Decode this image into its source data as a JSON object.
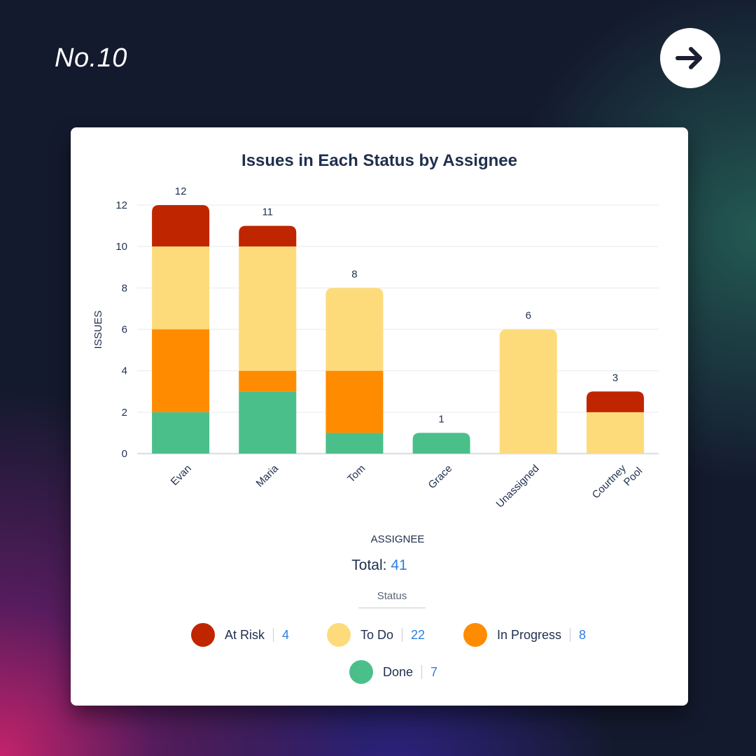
{
  "page": {
    "slide_number": "No.10",
    "next_icon": "arrow-right-icon"
  },
  "chart_data": {
    "type": "bar",
    "stacked": true,
    "title": "Issues in Each Status by Assignee",
    "xlabel": "ASSIGNEE",
    "ylabel": "ISSUES",
    "ylim": [
      0,
      12
    ],
    "yticks": [
      0,
      2,
      4,
      6,
      8,
      10,
      12
    ],
    "grid": true,
    "categories": [
      "Evan",
      "Maria",
      "Tom",
      "Grace",
      "Unassigned",
      "Courtney Pool"
    ],
    "series": [
      {
        "name": "Done",
        "color": "#4bbf8a",
        "values": [
          2,
          3,
          1,
          1,
          0,
          0
        ]
      },
      {
        "name": "In Progress",
        "color": "#ff8b00",
        "values": [
          4,
          1,
          3,
          0,
          0,
          0
        ]
      },
      {
        "name": "To Do",
        "color": "#fddb7b",
        "values": [
          4,
          6,
          4,
          0,
          6,
          2
        ]
      },
      {
        "name": "At Risk",
        "color": "#bf2600",
        "values": [
          2,
          1,
          0,
          0,
          0,
          1
        ]
      }
    ],
    "totals": [
      12,
      11,
      8,
      1,
      6,
      3
    ],
    "summary": {
      "total_label": "Total:",
      "total_value": "41"
    },
    "legend": {
      "title": "Status",
      "placement": "bottom",
      "items": [
        {
          "label": "At Risk",
          "count": "4",
          "color": "#bf2600"
        },
        {
          "label": "To Do",
          "count": "22",
          "color": "#fddb7b"
        },
        {
          "label": "In Progress",
          "count": "8",
          "color": "#ff8b00"
        },
        {
          "label": "Done",
          "count": "7",
          "color": "#4bbf8a"
        }
      ]
    }
  }
}
